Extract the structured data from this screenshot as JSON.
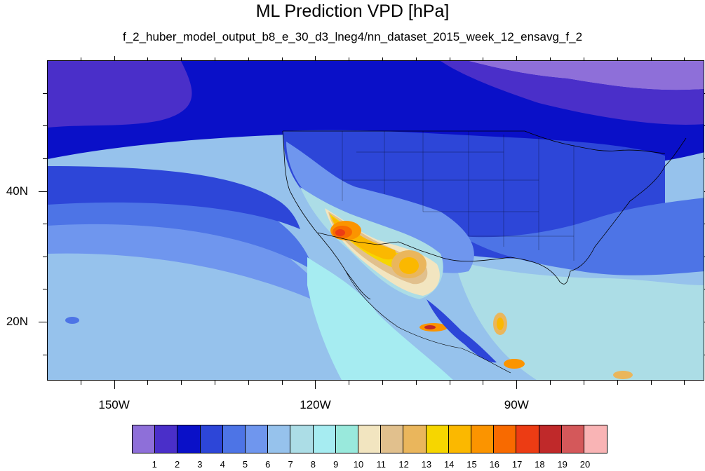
{
  "title": "ML Prediction VPD [hPa]",
  "subtitle": "f_2_huber_model_output_b8_e_30_d3_lneg4/nn_dataset_2015_week_12_ensavg_f_2",
  "map": {
    "lon_range": [
      -160,
      -62
    ],
    "lat_range": [
      11,
      60
    ],
    "lat_labels": [
      {
        "lat": 40,
        "text": "40N"
      },
      {
        "lat": 20,
        "text": "20N"
      }
    ],
    "lon_labels": [
      {
        "lon": -150,
        "text": "150W"
      },
      {
        "lon": -120,
        "text": "120W"
      },
      {
        "lon": -90,
        "text": "90W"
      }
    ],
    "minor_lat_ticks": [
      15,
      25,
      30,
      35,
      45,
      50,
      55
    ],
    "minor_lon_ticks": [
      -155,
      -145,
      -140,
      -135,
      -130,
      -125,
      -115,
      -110,
      -105,
      -100,
      -95,
      -85,
      -80,
      -75,
      -70,
      -65
    ]
  },
  "colorbar": {
    "colors": [
      "#8e6fd9",
      "#4a2fc9",
      "#0a10c8",
      "#2d46d8",
      "#4d74e6",
      "#6f96ee",
      "#96c2ec",
      "#acdde6",
      "#a6ecf1",
      "#99e9dc",
      "#f2e5c0",
      "#e1c08d",
      "#eab65c",
      "#f6d600",
      "#fbb800",
      "#fb9400",
      "#f86a00",
      "#ec3c14",
      "#c0292a",
      "#d4585a",
      "#f9b4b5"
    ],
    "labels": [
      "1",
      "2",
      "3",
      "4",
      "5",
      "6",
      "7",
      "8",
      "9",
      "10",
      "11",
      "12",
      "13",
      "14",
      "15",
      "16",
      "17",
      "18",
      "19",
      "20"
    ]
  }
}
